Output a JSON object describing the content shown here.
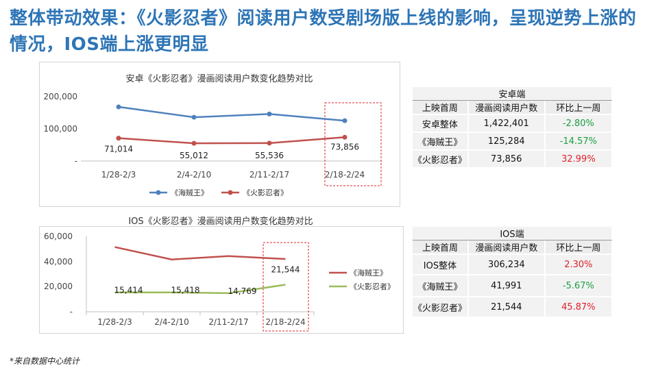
{
  "slide": {
    "title": "整体带动效果：《火影忍者》阅读用户数受剧场版上线的影响，呈现逆势上涨的情况，IOS端上涨更明显",
    "footer": "*来自数据中心统计"
  },
  "colors": {
    "title": "#2e75b6",
    "series_a": "#4f81bd",
    "series_b": "#c0504d",
    "series_c": "#9bbb59",
    "highlight": "#e0202a",
    "negative": "#1a9e3f"
  },
  "chart_data": [
    {
      "type": "line",
      "title": "安卓《火影忍者》漫画阅读用户数变化趋势对比",
      "categories": [
        "1/28-2/3",
        "2/4-2/10",
        "2/11-2/17",
        "2/18-2/24"
      ],
      "ytick_labels": [
        "200,000",
        "100,000",
        "-"
      ],
      "ylim": [
        0,
        200000
      ],
      "legend": "bottom",
      "grid": false,
      "series": [
        {
          "name": "《海贼王》",
          "color": "#4f81bd",
          "values": [
            168000,
            136000,
            146000,
            125284
          ],
          "labels": [
            "",
            "",
            "",
            ""
          ]
        },
        {
          "name": "《火影忍者》",
          "color": "#c0504d",
          "values": [
            71014,
            55012,
            55536,
            73856
          ],
          "labels": [
            "71,014",
            "55,012",
            "55,536",
            "73,856"
          ]
        }
      ]
    },
    {
      "type": "line",
      "title": "IOS《火影忍者》漫画阅读用户数变化趋势对比",
      "categories": [
        "1/28-2/3",
        "2/4-2/10",
        "2/11-2/17",
        "2/18-2/24"
      ],
      "ytick_labels": [
        "60,000",
        "40,000",
        "20,000",
        "-"
      ],
      "ylim": [
        0,
        60000
      ],
      "legend": "right",
      "grid": false,
      "series": [
        {
          "name": "《海贼王》",
          "color": "#c0504d",
          "values": [
            51500,
            41600,
            44300,
            41991
          ],
          "labels": [
            "",
            "",
            "",
            ""
          ]
        },
        {
          "name": "《火影忍者》",
          "color": "#9bbb59",
          "values": [
            15414,
            15418,
            14769,
            21544
          ],
          "labels": [
            "15,414",
            "15,418",
            "14,769",
            "21,544"
          ]
        }
      ]
    }
  ],
  "tables": [
    {
      "group": "安卓端",
      "headers": [
        "上映首周",
        "漫画阅读用户数",
        "环比上一周"
      ],
      "rows": [
        {
          "name": "安卓整体",
          "users": "1,422,401",
          "change": "-2.80%",
          "trend": "neg"
        },
        {
          "name": "《海贼王》",
          "users": "125,284",
          "change": "-14.57%",
          "trend": "neg"
        },
        {
          "name": "《火影忍者》",
          "users": "73,856",
          "change": "32.99%",
          "trend": "pos"
        }
      ]
    },
    {
      "group": "IOS端",
      "headers": [
        "上映首周",
        "漫画阅读用户数",
        "环比上一周"
      ],
      "rows": [
        {
          "name": "IOS整体",
          "users": "306,234",
          "change": "2.30%",
          "trend": "pos"
        },
        {
          "name": "《海贼王》",
          "users": "41,991",
          "change": "-5.67%",
          "trend": "neg"
        },
        {
          "name": "《火影忍者》",
          "users": "21,544",
          "change": "45.87%",
          "trend": "pos"
        }
      ]
    }
  ]
}
